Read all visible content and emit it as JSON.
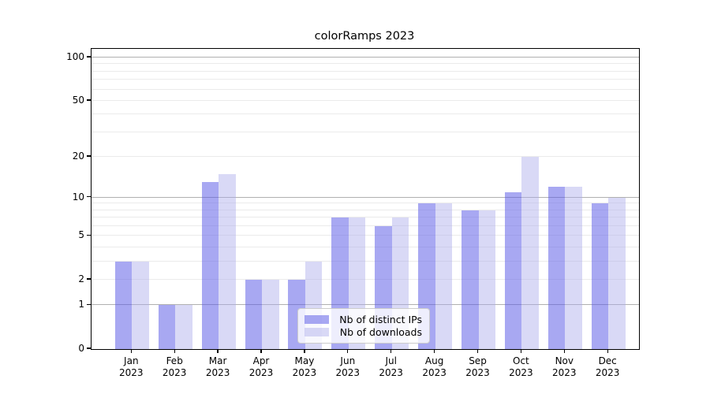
{
  "chart_data": {
    "type": "bar",
    "title": "colorRamps 2023",
    "year": "2023",
    "months": [
      "Jan",
      "Feb",
      "Mar",
      "Apr",
      "May",
      "Jun",
      "Jul",
      "Aug",
      "Sep",
      "Oct",
      "Nov",
      "Dec"
    ],
    "series": [
      {
        "name": "Nb of distinct IPs",
        "color": "rgba(90,90,230,0.53)",
        "values": [
          3,
          1,
          13,
          2,
          2,
          7,
          6,
          9,
          8,
          11,
          12,
          9
        ]
      },
      {
        "name": "Nb of downloads",
        "color": "rgba(170,170,235,0.45)",
        "values": [
          3,
          1,
          15,
          2,
          3,
          7,
          7,
          9,
          8,
          20,
          12,
          10
        ]
      }
    ],
    "yscale": "log1p",
    "ylim": [
      0,
      115
    ],
    "yticks": [
      0,
      1,
      2,
      5,
      10,
      20,
      50,
      100
    ],
    "major_gridlines": [
      1,
      10,
      100
    ],
    "minor_gridlines": [
      2,
      3,
      4,
      5,
      6,
      7,
      8,
      9,
      20,
      30,
      40,
      50,
      60,
      70,
      80,
      90
    ],
    "legend_position": "lower center",
    "colors": {
      "grid_major": "#b0b0b0",
      "grid_minor": "#ebebeb",
      "axis": "#000000",
      "background": "#ffffff"
    }
  }
}
